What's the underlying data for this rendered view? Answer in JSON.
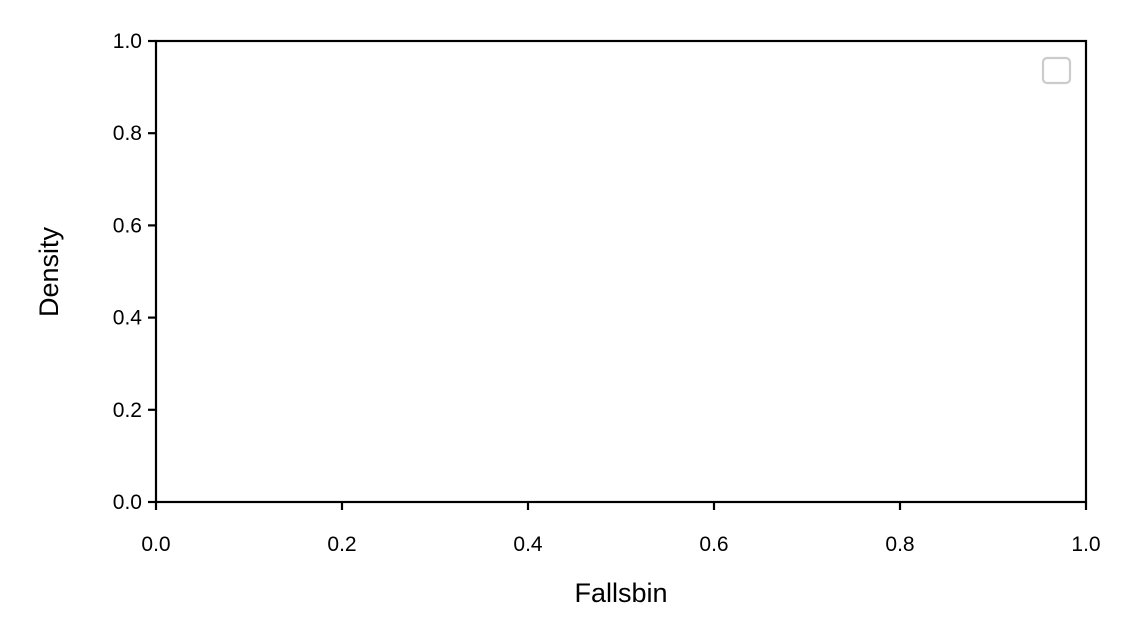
{
  "chart_data": {
    "type": "bar",
    "title": "",
    "xlabel": "Fallsbin",
    "ylabel": "Density",
    "xlim": [
      0.0,
      1.0
    ],
    "ylim": [
      0.0,
      1.0
    ],
    "x_ticks": [
      "0.0",
      "0.2",
      "0.4",
      "0.6",
      "0.8",
      "1.0"
    ],
    "y_ticks": [
      "0.0",
      "0.2",
      "0.4",
      "0.6",
      "0.8",
      "1.0"
    ],
    "series": [],
    "grid": false,
    "legend": {
      "placement": "upper-right",
      "entries": []
    },
    "colors": {
      "axis": "#000000",
      "legend_frame": "#cccccc",
      "background": "#ffffff"
    }
  }
}
